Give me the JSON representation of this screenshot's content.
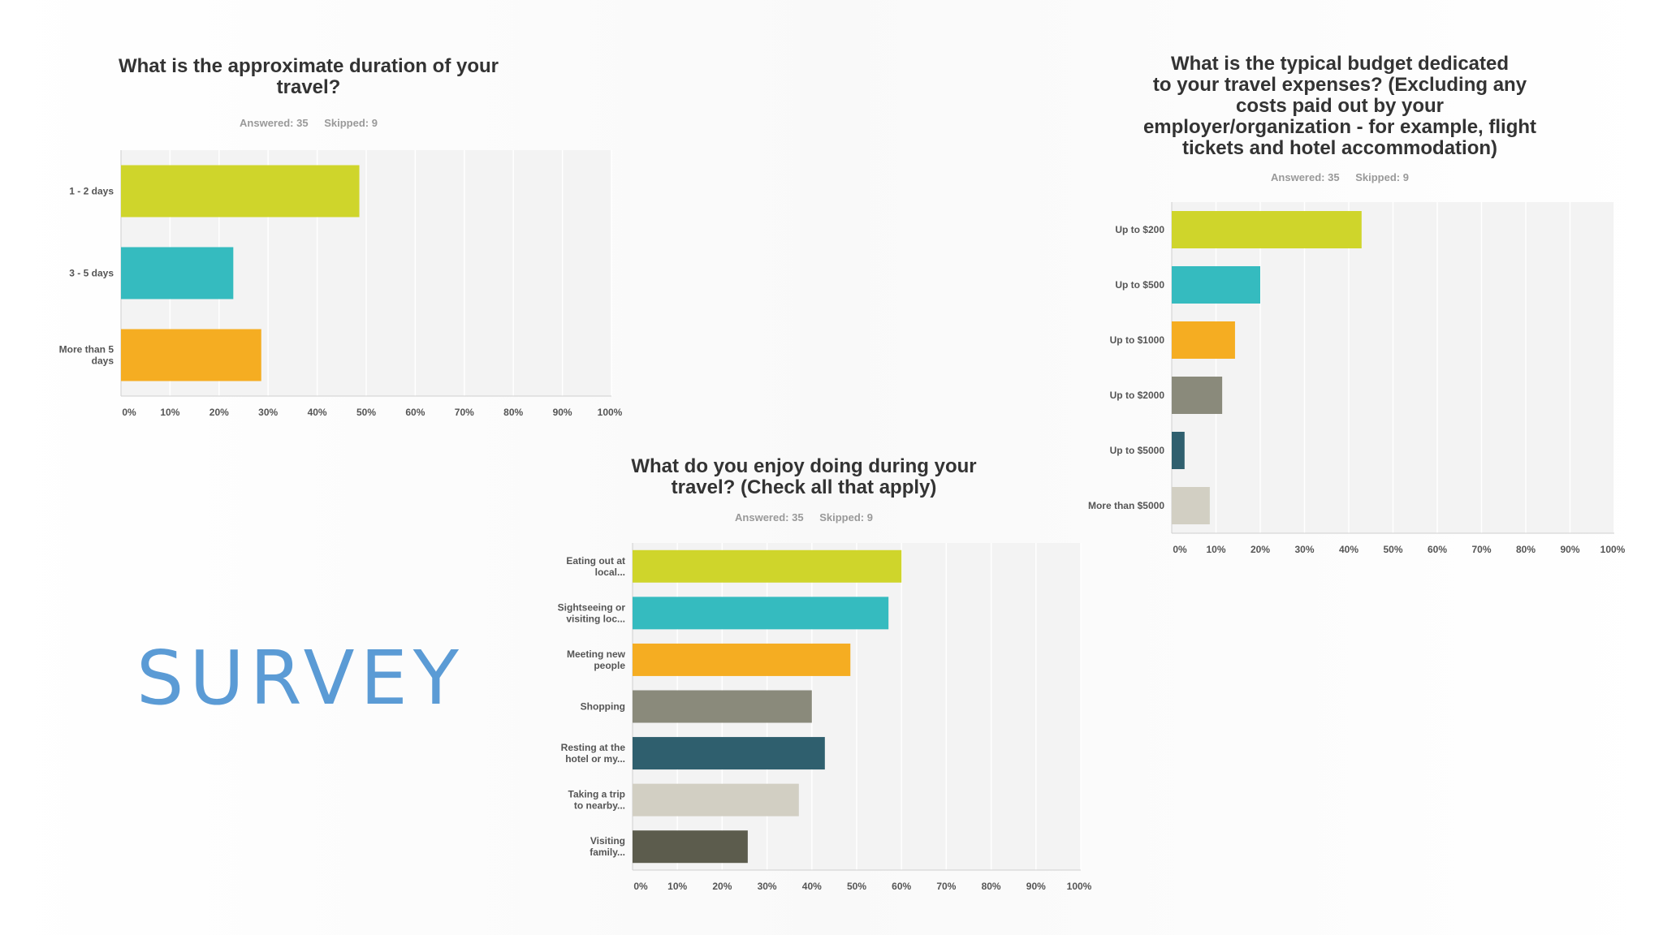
{
  "side_label": "SURVEY",
  "colors": {
    "plot_bg": "#f3f3f3",
    "grid": "#ffffff",
    "axis_text": "#555555",
    "palette": [
      "#cfd52b",
      "#35bbbf",
      "#f5ad22",
      "#8a8a7b",
      "#2f5f6e",
      "#d2cfc3",
      "#5c5c4d"
    ]
  },
  "chart_data": [
    {
      "type": "bar",
      "orientation": "horizontal",
      "title": "What is the approximate duration of your\ntravel?",
      "answered": "Answered: 35",
      "skipped": "Skipped: 9",
      "categories": [
        "1 - 2 days",
        "3 - 5 days",
        "More than 5\ndays"
      ],
      "values": [
        48.6,
        22.9,
        28.6
      ],
      "xlim": [
        0,
        100
      ],
      "ticks": [
        "0%",
        "10%",
        "20%",
        "30%",
        "40%",
        "50%",
        "60%",
        "70%",
        "80%",
        "90%",
        "100%"
      ]
    },
    {
      "type": "bar",
      "orientation": "horizontal",
      "title": "What is the typical budget dedicated\nto your travel expenses? (Excluding any\ncosts paid out by your\nemployer/organization - for example, flight\ntickets and hotel accommodation)",
      "answered": "Answered: 35",
      "skipped": "Skipped: 9",
      "categories": [
        "Up to $200",
        "Up to $500",
        "Up to $1000",
        "Up to $2000",
        "Up to $5000",
        "More than $5000"
      ],
      "values": [
        42.9,
        20.0,
        14.3,
        11.4,
        2.9,
        8.6
      ],
      "xlim": [
        0,
        100
      ],
      "ticks": [
        "0%",
        "10%",
        "20%",
        "30%",
        "40%",
        "50%",
        "60%",
        "70%",
        "80%",
        "90%",
        "100%"
      ]
    },
    {
      "type": "bar",
      "orientation": "horizontal",
      "title": "What do you enjoy doing during your\ntravel? (Check all that apply)",
      "answered": "Answered: 35",
      "skipped": "Skipped: 9",
      "categories": [
        "Eating out at\nlocal...",
        "Sightseeing or\nvisiting loc...",
        "Meeting new\npeople",
        "Shopping",
        "Resting at the\nhotel or my...",
        "Taking a trip\nto nearby...",
        "Visiting\nfamily..."
      ],
      "values": [
        60.0,
        57.1,
        48.6,
        40.0,
        42.9,
        37.1,
        25.7
      ],
      "xlim": [
        0,
        100
      ],
      "ticks": [
        "0%",
        "10%",
        "20%",
        "30%",
        "40%",
        "50%",
        "60%",
        "70%",
        "80%",
        "90%",
        "100%"
      ]
    }
  ]
}
